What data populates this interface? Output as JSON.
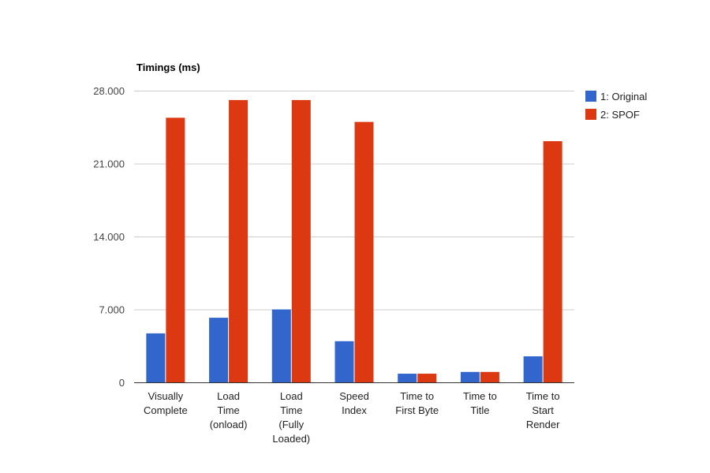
{
  "chart_data": {
    "type": "bar",
    "title": "Timings (ms)",
    "xlabel": "",
    "ylabel": "",
    "ylim": [
      0,
      28000
    ],
    "yticks": [
      0,
      7000,
      14000,
      21000,
      28000
    ],
    "ytick_labels": [
      "0",
      "7.000",
      "14.000",
      "21.000",
      "28.000"
    ],
    "grid": true,
    "legend_position": "right",
    "categories": [
      [
        "Visually",
        "Complete"
      ],
      [
        "Load",
        "Time",
        "(onload)"
      ],
      [
        "Load",
        "Time",
        "(Fully",
        "Loaded)"
      ],
      [
        "Speed",
        "Index"
      ],
      [
        "Time to",
        "First Byte"
      ],
      [
        "Time to",
        "Title"
      ],
      [
        "Time to",
        "Start",
        "Render"
      ]
    ],
    "series": [
      {
        "name": "1: Original",
        "color": "#3366cc",
        "values": [
          4700,
          6200,
          7000,
          3950,
          830,
          1000,
          2500
        ]
      },
      {
        "name": "2: SPOF",
        "color": "#dc3912",
        "values": [
          25400,
          27100,
          27100,
          25000,
          830,
          1000,
          23150
        ]
      }
    ]
  }
}
